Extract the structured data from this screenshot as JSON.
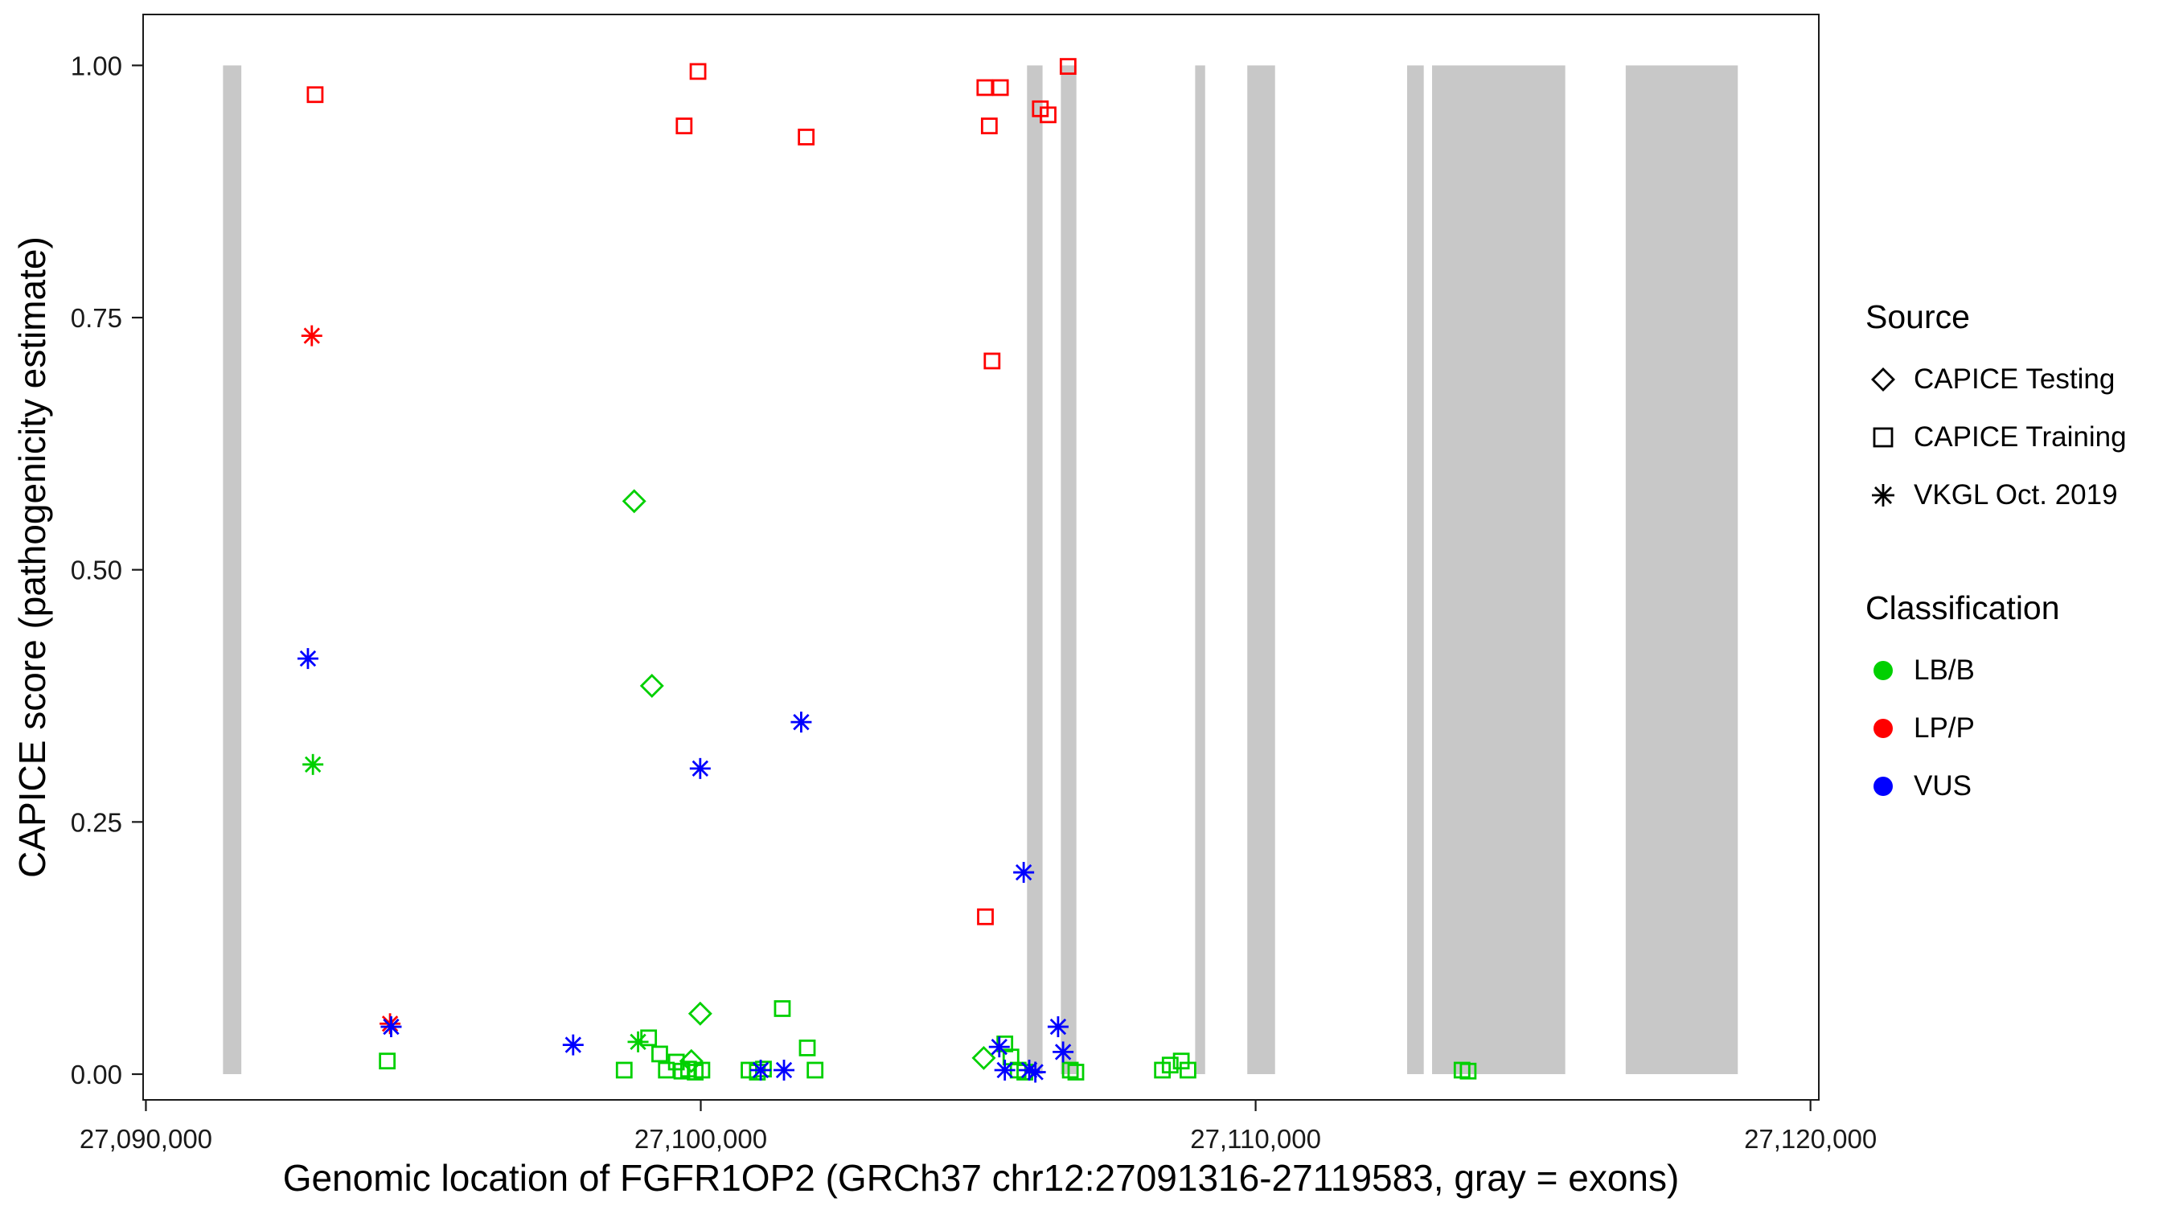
{
  "chart_data": {
    "type": "scatter",
    "title": "",
    "xlabel": "Genomic location of FGFR1OP2 (GRCh37 chr12:27091316-27119583, gray = exons)",
    "ylabel": "CAPICE score (pathogenicity estimate)",
    "xlim": [
      27089950,
      27120150
    ],
    "ylim": [
      -0.0255,
      1.0505
    ],
    "grid": false,
    "legend_position": "right",
    "x_ticks": [
      {
        "value": 27090000,
        "label": "27,090,000"
      },
      {
        "value": 27100000,
        "label": "27,100,000"
      },
      {
        "value": 27110000,
        "label": "27,110,000"
      },
      {
        "value": 27120000,
        "label": "27,120,000"
      }
    ],
    "y_ticks": [
      {
        "value": 0.0,
        "label": "0.00"
      },
      {
        "value": 0.25,
        "label": "0.25"
      },
      {
        "value": 0.5,
        "label": "0.50"
      },
      {
        "value": 0.75,
        "label": "0.75"
      },
      {
        "value": 1.0,
        "label": "1.00"
      }
    ],
    "exon_color": "#c8c8c8",
    "exon_band_score_range": [
      0,
      1
    ],
    "exons": [
      [
        27091390,
        27091720
      ],
      [
        27105880,
        27106160
      ],
      [
        27106490,
        27106770
      ],
      [
        27108910,
        27109090
      ],
      [
        27109850,
        27110350
      ],
      [
        27112730,
        27113030
      ],
      [
        27113180,
        27115580
      ],
      [
        27116670,
        27118690
      ]
    ],
    "series": [
      {
        "name": "CAPICE Testing / LB/B",
        "source": "CAPICE Testing",
        "classification": "LB/B",
        "shape": "diamond",
        "color": "#00d000",
        "points": [
          [
            27098800,
            0.568
          ],
          [
            27099120,
            0.385
          ],
          [
            27099990,
            0.06
          ],
          [
            27099830,
            0.013
          ],
          [
            27105100,
            0.016
          ]
        ]
      },
      {
        "name": "CAPICE Training / LB/B",
        "source": "CAPICE Training",
        "classification": "LB/B",
        "shape": "square",
        "color": "#00d000",
        "points": [
          [
            27094350,
            0.013
          ],
          [
            27098620,
            0.004
          ],
          [
            27099060,
            0.036
          ],
          [
            27099260,
            0.02
          ],
          [
            27099380,
            0.004
          ],
          [
            27099560,
            0.012
          ],
          [
            27099660,
            0.003
          ],
          [
            27099780,
            0.005
          ],
          [
            27099900,
            0.002
          ],
          [
            27100020,
            0.004
          ],
          [
            27100870,
            0.004
          ],
          [
            27101020,
            0.002
          ],
          [
            27101130,
            0.005
          ],
          [
            27101470,
            0.065
          ],
          [
            27101920,
            0.026
          ],
          [
            27102060,
            0.004
          ],
          [
            27105480,
            0.03
          ],
          [
            27105590,
            0.017
          ],
          [
            27105720,
            0.004
          ],
          [
            27105840,
            0.002
          ],
          [
            27106660,
            0.004
          ],
          [
            27106760,
            0.002
          ],
          [
            27108320,
            0.004
          ],
          [
            27108460,
            0.009
          ],
          [
            27108660,
            0.013
          ],
          [
            27108780,
            0.004
          ],
          [
            27113720,
            0.004
          ],
          [
            27113830,
            0.003
          ]
        ]
      },
      {
        "name": "CAPICE Training / LP/P",
        "source": "CAPICE Training",
        "classification": "LP/P",
        "shape": "square",
        "color": "#ff0000",
        "points": [
          [
            27093050,
            0.971
          ],
          [
            27099700,
            0.94
          ],
          [
            27099950,
            0.994
          ],
          [
            27101900,
            0.929
          ],
          [
            27105120,
            0.978
          ],
          [
            27105400,
            0.978
          ],
          [
            27105200,
            0.94
          ],
          [
            27106120,
            0.957
          ],
          [
            27106260,
            0.951
          ],
          [
            27106620,
            0.999
          ],
          [
            27105250,
            0.707
          ],
          [
            27105130,
            0.156
          ]
        ]
      },
      {
        "name": "VKGL Oct. 2019 / LB/B",
        "source": "VKGL Oct. 2019",
        "classification": "LB/B",
        "shape": "asterisk",
        "color": "#00d000",
        "points": [
          [
            27093010,
            0.307
          ],
          [
            27098870,
            0.032
          ]
        ]
      },
      {
        "name": "VKGL Oct. 2019 / LP/P",
        "source": "VKGL Oct. 2019",
        "classification": "LP/P",
        "shape": "asterisk",
        "color": "#ff0000",
        "points": [
          [
            27092990,
            0.732
          ],
          [
            27094400,
            0.05
          ]
        ]
      },
      {
        "name": "VKGL Oct. 2019 / VUS",
        "source": "VKGL Oct. 2019",
        "classification": "VUS",
        "shape": "asterisk",
        "color": "#0000ff",
        "points": [
          [
            27092920,
            0.412
          ],
          [
            27094420,
            0.047
          ],
          [
            27097700,
            0.029
          ],
          [
            27099990,
            0.303
          ],
          [
            27101080,
            0.004
          ],
          [
            27101500,
            0.004
          ],
          [
            27101810,
            0.349
          ],
          [
            27105380,
            0.027
          ],
          [
            27105480,
            0.004
          ],
          [
            27105820,
            0.2
          ],
          [
            27105920,
            0.004
          ],
          [
            27106030,
            0.002
          ],
          [
            27106440,
            0.047
          ],
          [
            27106530,
            0.022
          ]
        ]
      }
    ]
  },
  "legend": {
    "source": {
      "title": "Source",
      "items": [
        {
          "label": "CAPICE Testing",
          "shape": "diamond"
        },
        {
          "label": "CAPICE Training",
          "shape": "square"
        },
        {
          "label": "VKGL Oct. 2019",
          "shape": "asterisk"
        }
      ]
    },
    "classification": {
      "title": "Classification",
      "items": [
        {
          "label": "LB/B",
          "color": "#00d000"
        },
        {
          "label": "LP/P",
          "color": "#ff0000"
        },
        {
          "label": "VUS",
          "color": "#0000ff"
        }
      ]
    }
  }
}
